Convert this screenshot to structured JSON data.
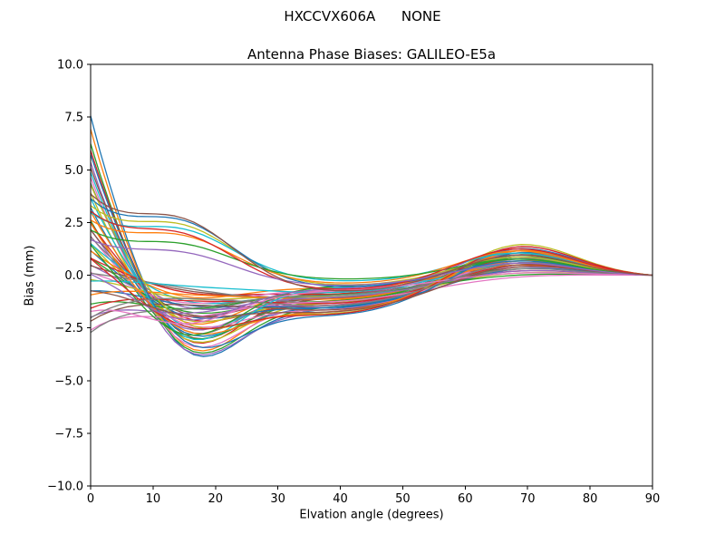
{
  "header": {
    "suptitle": "HXCCVX606A      NONE"
  },
  "chart_data": {
    "type": "line",
    "suptitle": "HXCCVX606A      NONE",
    "title": "Antenna Phase Biases: GALILEO-E5a",
    "xlabel": "Elvation angle (degrees)",
    "ylabel": "Bias (mm)",
    "xlim": [
      0,
      90
    ],
    "ylim": [
      -10.0,
      10.0
    ],
    "xticks": [
      0,
      10,
      20,
      30,
      40,
      50,
      60,
      70,
      80,
      90
    ],
    "xtick_labels": [
      "0",
      "10",
      "20",
      "30",
      "40",
      "50",
      "60",
      "70",
      "80",
      "90"
    ],
    "yticks": [
      10.0,
      7.5,
      5.0,
      2.5,
      0.0,
      -2.5,
      -5.0,
      -7.5,
      -10.0
    ],
    "ytick_labels": [
      "10.0",
      "7.5",
      "5.0",
      "2.5",
      "0.0",
      "−2.5",
      "−5.0",
      "−7.5",
      "−10.0"
    ],
    "grid": false,
    "legend": "none",
    "n_series": 56,
    "palette": [
      "#1f77b4",
      "#ff7f0e",
      "#2ca02c",
      "#d62728",
      "#9467bd",
      "#8c564b",
      "#e377c2",
      "#7f7f7f",
      "#bcbd22",
      "#17becf"
    ],
    "summary": "Bundle of ~56 unlabeled antenna phase-bias curves. Start values at 0 deg spread from about -2.5 to +7.5 mm; lower envelope dips to about -3.5 mm near 10-17 deg; bundle pinches to roughly -2..0 mm near 40-45 deg; broad bump up to about +1.5 mm near 65-70 deg; all curves converge to 0.0 mm at 90 deg.",
    "series_params_format": "[start_mm_at_0deg, value_mm_at_15deg, waist_mm_near_40deg, value_mm_at_68deg]; all curves end at [90, 0.0]",
    "series": [
      [
        8.6,
        -3.5,
        -1.6,
        1.3
      ],
      [
        7.9,
        -3.3,
        -1.2,
        1.0
      ],
      [
        7.2,
        -3.4,
        -1.5,
        1.2
      ],
      [
        6.8,
        -3.0,
        -0.9,
        0.8
      ],
      [
        6.3,
        -3.5,
        -1.7,
        1.4
      ],
      [
        5.9,
        -2.8,
        -1.1,
        0.6
      ],
      [
        5.5,
        -3.2,
        -1.4,
        1.1
      ],
      [
        5.1,
        -2.6,
        -0.8,
        0.9
      ],
      [
        4.7,
        -3.0,
        -1.3,
        0.5
      ],
      [
        4.3,
        -2.4,
        -1.0,
        1.2
      ],
      [
        3.9,
        -2.7,
        -1.5,
        0.7
      ],
      [
        3.6,
        -2.2,
        -0.7,
        1.0
      ],
      [
        3.3,
        -2.9,
        -1.2,
        0.4
      ],
      [
        3.0,
        -2.0,
        -1.4,
        0.9
      ],
      [
        2.8,
        -2.5,
        -0.9,
        1.3
      ],
      [
        2.6,
        -1.8,
        -1.1,
        0.6
      ],
      [
        2.4,
        -2.3,
        -1.6,
        0.8
      ],
      [
        2.2,
        -1.5,
        -0.8,
        1.1
      ],
      [
        2.0,
        -2.1,
        -1.3,
        0.3
      ],
      [
        1.8,
        -1.2,
        -1.0,
        0.7
      ],
      [
        1.6,
        -1.9,
        -1.5,
        1.0
      ],
      [
        1.4,
        -1.0,
        -0.6,
        0.5
      ],
      [
        1.2,
        -1.7,
        -1.2,
        0.9
      ],
      [
        1.0,
        -0.8,
        -0.9,
        0.2
      ],
      [
        0.8,
        -1.5,
        -1.4,
        0.6
      ],
      [
        0.6,
        -0.7,
        -1.1,
        1.0
      ],
      [
        0.4,
        -1.3,
        -0.7,
        0.4
      ],
      [
        0.2,
        -0.6,
        -1.3,
        0.8
      ],
      [
        0.0,
        -1.1,
        -1.0,
        0.1
      ],
      [
        -0.2,
        -0.5,
        -0.8,
        0.6
      ],
      [
        -0.5,
        -1.4,
        -1.5,
        0.3
      ],
      [
        -0.8,
        -0.9,
        -1.1,
        0.7
      ],
      [
        -1.1,
        -1.6,
        -0.9,
        0.0
      ],
      [
        -1.4,
        -1.2,
        -1.3,
        0.5
      ],
      [
        -1.7,
        -1.8,
        -1.0,
        0.2
      ],
      [
        -2.0,
        -1.4,
        -1.6,
        0.4
      ],
      [
        -2.3,
        -2.0,
        -1.2,
        -0.1
      ],
      [
        -2.5,
        -1.6,
        -0.9,
        0.3
      ],
      [
        4.9,
        -2.2,
        -1.8,
        1.5
      ],
      [
        5.7,
        -2.9,
        -0.6,
        0.9
      ],
      [
        6.6,
        -3.1,
        -1.9,
        1.1
      ],
      [
        3.1,
        -2.6,
        -1.7,
        1.2
      ],
      [
        2.1,
        -2.8,
        -0.5,
        0.8
      ],
      [
        1.3,
        -2.4,
        -1.8,
        1.4
      ],
      [
        0.5,
        -2.1,
        -0.6,
        0.9
      ],
      [
        -0.4,
        -1.9,
        -1.7,
        0.5
      ],
      [
        -1.3,
        -2.3,
        -0.7,
        0.1
      ],
      [
        -1.9,
        -1.1,
        -1.4,
        0.6
      ],
      [
        2.9,
        2.4,
        -0.5,
        0.9
      ],
      [
        2.6,
        2.2,
        -0.3,
        1.1
      ],
      [
        3.2,
        2.6,
        -0.6,
        0.7
      ],
      [
        2.3,
        1.9,
        -0.4,
        1.2
      ],
      [
        1.9,
        1.5,
        -0.2,
        0.8
      ],
      [
        2.7,
        2.0,
        -0.7,
        1.3
      ],
      [
        1.5,
        1.1,
        -0.5,
        0.6
      ],
      [
        3.4,
        2.7,
        -0.8,
        1.0
      ]
    ]
  }
}
